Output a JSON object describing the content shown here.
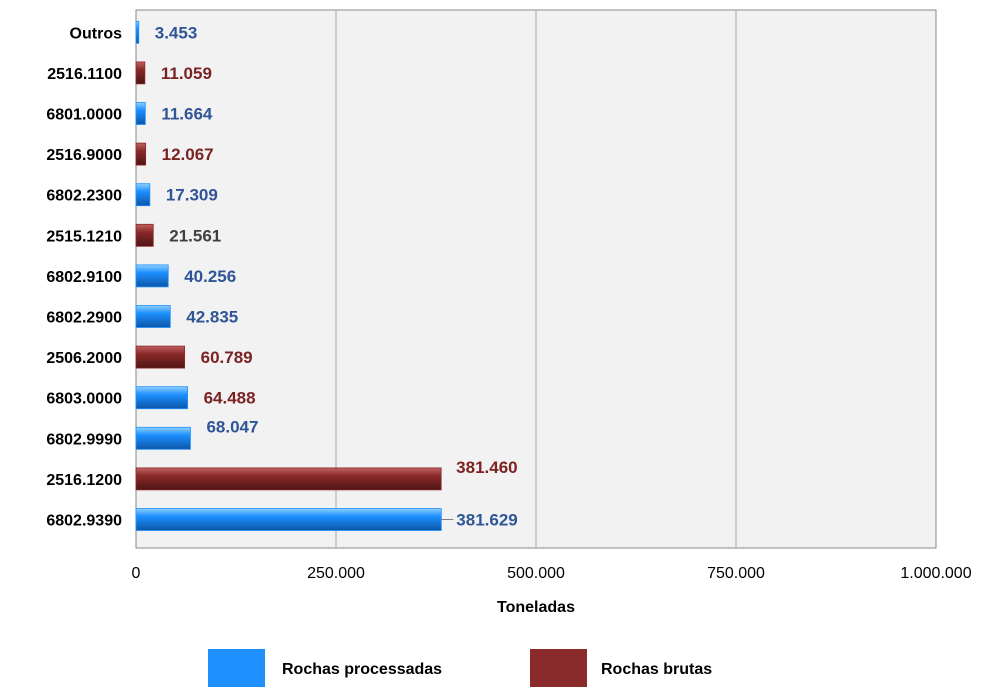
{
  "chart_data": {
    "type": "bar",
    "orientation": "horizontal",
    "categories": [
      "Outros",
      "2516.1100",
      "6801.0000",
      "2516.9000",
      "6802.2300",
      "2515.1210",
      "6802.9100",
      "6802.2900",
      "2506.2000",
      "6803.0000",
      "6802.9990",
      "2516.1200",
      "6802.9390"
    ],
    "values": [
      3453,
      11059,
      11664,
      12067,
      17309,
      21561,
      40256,
      42835,
      60789,
      64488,
      68047,
      381460,
      381629
    ],
    "value_labels": [
      "3.453",
      "11.059",
      "11.664",
      "12.067",
      "17.309",
      "21.561",
      "40.256",
      "42.835",
      "60.789",
      "64.488",
      "68.047",
      "381.460",
      "381.629"
    ],
    "series_of_bar": [
      "processadas",
      "brutas",
      "processadas",
      "brutas",
      "processadas",
      "brutas",
      "processadas",
      "processadas",
      "brutas",
      "processadas",
      "processadas",
      "brutas",
      "processadas"
    ],
    "label_colors": [
      "#2f5597",
      "#7b2323",
      "#2f5597",
      "#7b2323",
      "#2f5597",
      "#404040",
      "#2f5597",
      "#2f5597",
      "#7b2323",
      "#7b2323",
      "#2f5597",
      "#7b2323",
      "#2f5597"
    ],
    "series": [
      {
        "key": "processadas",
        "name": "Rochas processadas",
        "color": "#1e90ff"
      },
      {
        "key": "brutas",
        "name": "Rochas brutas",
        "color": "#8b2a2a"
      }
    ],
    "xlabel": "Toneladas",
    "ylabel": "",
    "xlim": [
      0,
      1000000
    ],
    "xticks": [
      0,
      250000,
      500000,
      750000,
      1000000
    ],
    "xtick_labels": [
      "0",
      "250.000",
      "500.000",
      "750.000",
      "1.000.000"
    ],
    "grid": true,
    "legend_position": "bottom"
  }
}
